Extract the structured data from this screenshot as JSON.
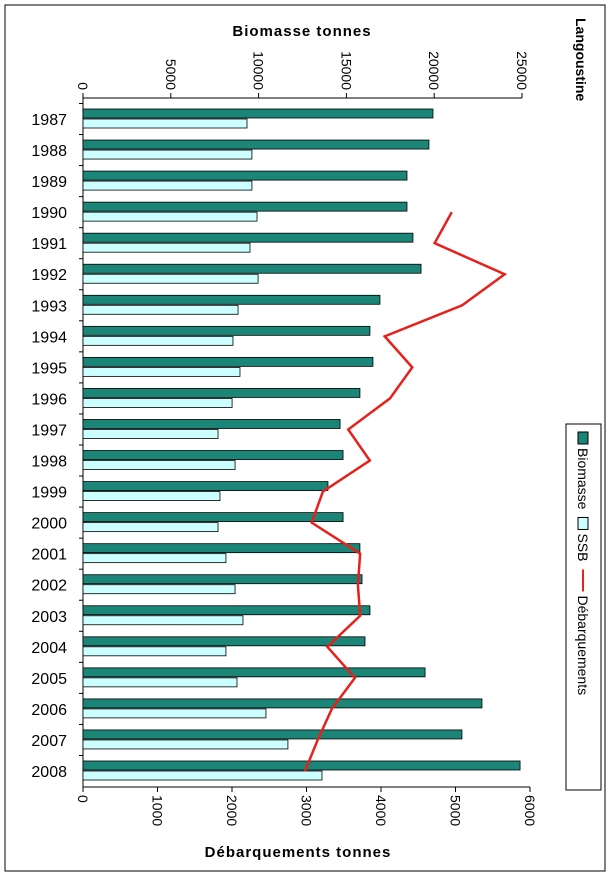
{
  "chart_data": {
    "type": "bar",
    "orientation": "horizontal",
    "title": "Langoustine",
    "x_title": "Biomasse tonnes",
    "x2_title": "Débarquements tonnes",
    "categories": [
      "1987",
      "1988",
      "1989",
      "1990",
      "1991",
      "1992",
      "1993",
      "1994",
      "1995",
      "1996",
      "1997",
      "1998",
      "1999",
      "2000",
      "2001",
      "2002",
      "2003",
      "2004",
      "2005",
      "2006",
      "2007",
      "2008"
    ],
    "xlim": [
      0,
      25000
    ],
    "xticks": [
      0,
      5000,
      10000,
      15000,
      20000,
      25000
    ],
    "x2lim": [
      0,
      6000
    ],
    "x2ticks": [
      0,
      1000,
      2000,
      3000,
      4000,
      5000,
      6000
    ],
    "series": [
      {
        "name": "Biomasse",
        "type": "bar",
        "color": "#1b8578",
        "values": [
          19930,
          19700,
          18450,
          18450,
          18790,
          19250,
          16910,
          16340,
          16510,
          15770,
          14640,
          14810,
          13950,
          14810,
          15770,
          15890,
          16340,
          16060,
          19480,
          22720,
          21580,
          24890
        ]
      },
      {
        "name": "SSB",
        "type": "bar",
        "color": "#ccffff",
        "values": [
          9340,
          9620,
          9620,
          9910,
          9510,
          9970,
          8830,
          8540,
          8940,
          8490,
          7690,
          8660,
          7800,
          7690,
          8140,
          8660,
          9110,
          8140,
          8770,
          10420,
          11670,
          13610
        ]
      },
      {
        "name": "Débarquements",
        "type": "line",
        "axis": "x2",
        "color": "#e8201c",
        "values": [
          null,
          null,
          null,
          4950,
          4720,
          5660,
          5090,
          4050,
          4420,
          4120,
          3560,
          3850,
          3220,
          3070,
          3720,
          3690,
          3720,
          3280,
          3650,
          3340,
          3150,
          2980
        ]
      }
    ]
  }
}
